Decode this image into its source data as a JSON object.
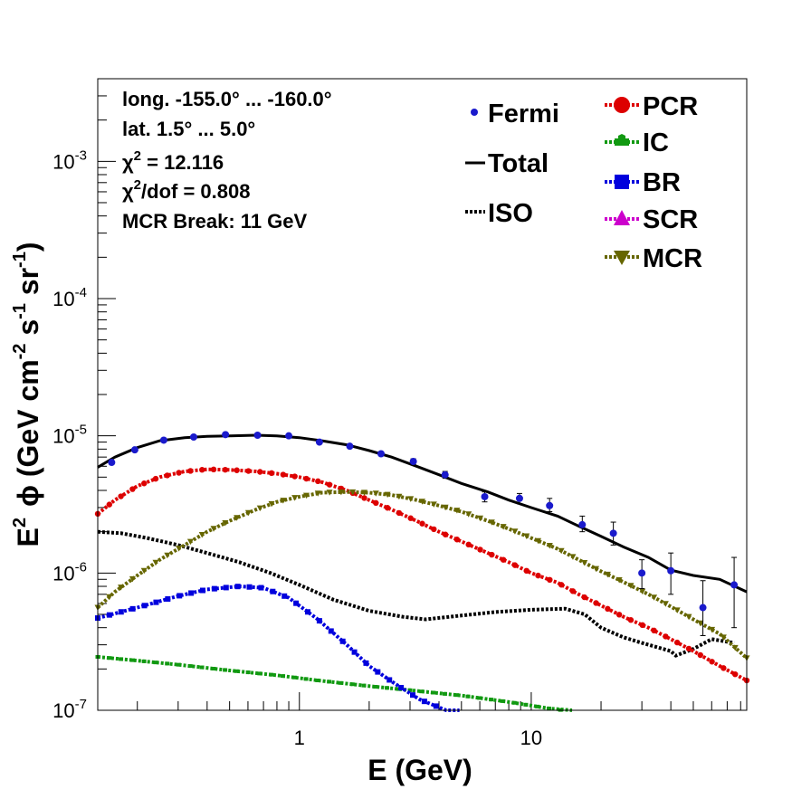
{
  "chart_data": {
    "type": "scatter",
    "title": "",
    "xlabel": "E (GeV)",
    "ylabel": "E^2 ϕ (GeV cm^-2 s^-1 sr^-1)",
    "ylabel_parts": {
      "E": "E",
      "sq": "2",
      "phi": "ϕ",
      "open": " (GeV cm",
      "cm_exp": "-2",
      "s": " s",
      "s_exp": "-1",
      "sr": " sr",
      "sr_exp": "-1",
      "close": ")"
    },
    "xscale": "log",
    "yscale": "log",
    "xlim": [
      0.135,
      85
    ],
    "ylim": [
      1e-07,
      0.004
    ],
    "x_tick_labels": [
      {
        "value": 1,
        "label": "1"
      },
      {
        "value": 10,
        "label": "10"
      }
    ],
    "y_tick_labels": [
      {
        "value": 1e-07,
        "base": "10",
        "exp": "-7"
      },
      {
        "value": 1e-06,
        "base": "10",
        "exp": "-6"
      },
      {
        "value": 1e-05,
        "base": "10",
        "exp": "-5"
      },
      {
        "value": 0.0001,
        "base": "10",
        "exp": "-4"
      },
      {
        "value": 0.001,
        "base": "10",
        "exp": "-3"
      }
    ],
    "info_box": {
      "longitude": "long. -155.0° ... -160.0°",
      "latitude": "lat. 1.5° ... 5.0°",
      "chi2_symbol": "χ",
      "chi2_sup": "2",
      "chi2_value": " = 12.116",
      "chi2dof_value": "/dof = 0.808",
      "mcr_break": "MCR Break: 11 GeV"
    },
    "legend": {
      "fermi": "Fermi",
      "total": "Total",
      "iso": "ISO",
      "pcr": "PCR",
      "ic": "IC",
      "br": "BR",
      "scr": "SCR",
      "mcr": "MCR"
    },
    "colors": {
      "fermi": "#1a1acc",
      "total": "#000000",
      "iso": "#000000",
      "pcr": "#dd0000",
      "ic": "#119911",
      "br": "#0000dd",
      "scr": "#cc00cc",
      "mcr": "#666600"
    },
    "fermi": {
      "x": [
        0.155,
        0.195,
        0.26,
        0.35,
        0.48,
        0.66,
        0.9,
        1.22,
        1.65,
        2.25,
        3.1,
        4.25,
        6.3,
        8.9,
        12.0,
        16.6,
        22.6,
        30.0,
        40.0,
        55.0,
        75.0
      ],
      "y": [
        6.4e-06,
        7.9e-06,
        9.3e-06,
        9.8e-06,
        1.02e-05,
        1.01e-05,
        1e-05,
        9e-06,
        8.4e-06,
        7.4e-06,
        6.5e-06,
        5.2e-06,
        3.6e-06,
        3.5e-06,
        3.1e-06,
        2.25e-06,
        1.95e-06,
        1e-06,
        1.04e-06,
        5.6e-07,
        8.2e-07
      ],
      "err_low": [
        6.2e-06,
        7.7e-06,
        9.1e-06,
        9.6e-06,
        1e-05,
        9.9e-06,
        9.8e-06,
        8.8e-06,
        8.2e-06,
        7.2e-06,
        6.2e-06,
        4.9e-06,
        3.3e-06,
        3.2e-06,
        2.8e-06,
        2e-06,
        1.6e-06,
        7.7e-07,
        7e-07,
        3.5e-07,
        4e-07
      ],
      "err_high": [
        6.6e-06,
        8.1e-06,
        9.5e-06,
        1e-05,
        1.04e-05,
        1.03e-05,
        1.02e-05,
        9.2e-06,
        8.6e-06,
        7.6e-06,
        6.8e-06,
        5.5e-06,
        3.9e-06,
        3.8e-06,
        3.5e-06,
        2.6e-06,
        2.35e-06,
        1.25e-06,
        1.4e-06,
        8.8e-07,
        1.3e-06
      ]
    },
    "series": [
      {
        "name": "Total",
        "style": "solid",
        "x": [
          0.135,
          0.16,
          0.2,
          0.25,
          0.32,
          0.4,
          0.5,
          0.65,
          0.8,
          1.0,
          1.25,
          1.6,
          2.0,
          2.5,
          3.2,
          4.0,
          5.0,
          6.5,
          8.0,
          10,
          13,
          16,
          20,
          25,
          32,
          40,
          50,
          65,
          85
        ],
        "y": [
          5.9e-06,
          7e-06,
          8.2e-06,
          9.2e-06,
          9.7e-06,
          9.9e-06,
          1e-05,
          1.01e-05,
          1e-05,
          9.7e-06,
          9.2e-06,
          8.6e-06,
          7.8e-06,
          7e-06,
          6e-06,
          5.2e-06,
          4.5e-06,
          3.9e-06,
          3.4e-06,
          3e-06,
          2.6e-06,
          2.2e-06,
          1.85e-06,
          1.55e-06,
          1.3e-06,
          1.05e-06,
          9.6e-07,
          9e-07,
          7.3e-07
        ]
      },
      {
        "name": "ISO",
        "style": "dotted",
        "x": [
          0.135,
          0.17,
          0.22,
          0.3,
          0.4,
          0.55,
          0.75,
          1.0,
          1.4,
          2.0,
          2.8,
          3.5,
          5.0,
          7.0,
          10,
          14,
          17,
          20,
          25,
          30,
          40,
          42,
          50,
          60,
          75
        ],
        "y": [
          2e-06,
          1.95e-06,
          1.8e-06,
          1.6e-06,
          1.4e-06,
          1.2e-06,
          1e-06,
          8.2e-07,
          6.4e-07,
          5.3e-07,
          4.8e-07,
          4.6e-07,
          4.9e-07,
          5.2e-07,
          5.4e-07,
          5.5e-07,
          5e-07,
          4e-07,
          3.4e-07,
          3.1e-07,
          2.7e-07,
          2.5e-07,
          2.8e-07,
          3.3e-07,
          3.1e-07
        ]
      },
      {
        "name": "PCR",
        "style": "dotted",
        "marker": "circle",
        "x": [
          0.135,
          0.16,
          0.2,
          0.25,
          0.32,
          0.4,
          0.5,
          0.65,
          0.8,
          1.0,
          1.25,
          1.6,
          2.0,
          2.5,
          3.2,
          4.0,
          5.0,
          6.5,
          8.0,
          10,
          13,
          16,
          20,
          25,
          32,
          40,
          50,
          65,
          85
        ],
        "y": [
          2.7e-06,
          3.4e-06,
          4.3e-06,
          5e-06,
          5.5e-06,
          5.7e-06,
          5.65e-06,
          5.5e-06,
          5.3e-06,
          5e-06,
          4.6e-06,
          4e-06,
          3.4e-06,
          2.9e-06,
          2.4e-06,
          2e-06,
          1.7e-06,
          1.4e-06,
          1.2e-06,
          1e-06,
          8.5e-07,
          7e-07,
          5.8e-07,
          4.8e-07,
          4e-07,
          3.3e-07,
          2.7e-07,
          2.1e-07,
          1.65e-07
        ]
      },
      {
        "name": "IC",
        "style": "dotted",
        "marker": "cross",
        "x": [
          0.135,
          0.2,
          0.3,
          0.5,
          0.8,
          1.2,
          2.0,
          3.0,
          5.0,
          8.0,
          12,
          15
        ],
        "y": [
          2.45e-07,
          2.3e-07,
          2.15e-07,
          1.95e-07,
          1.8e-07,
          1.65e-07,
          1.5e-07,
          1.4e-07,
          1.28e-07,
          1.15e-07,
          1.03e-07,
          9.8e-08
        ]
      },
      {
        "name": "BR",
        "style": "dotted",
        "marker": "square",
        "x": [
          0.135,
          0.2,
          0.3,
          0.4,
          0.55,
          0.7,
          0.9,
          1.2,
          1.6,
          2.0,
          2.6,
          3.3,
          4.3,
          4.9
        ],
        "y": [
          4.7e-07,
          5.6e-07,
          6.8e-07,
          7.6e-07,
          8e-07,
          7.8e-07,
          6.6e-07,
          4.6e-07,
          3e-07,
          2.1e-07,
          1.55e-07,
          1.2e-07,
          1e-07,
          9.4e-08
        ]
      },
      {
        "name": "MCR",
        "style": "dotted",
        "marker": "triangle-down",
        "x": [
          0.135,
          0.16,
          0.2,
          0.25,
          0.32,
          0.4,
          0.5,
          0.65,
          0.8,
          1.0,
          1.25,
          1.6,
          2.0,
          2.5,
          3.2,
          4.0,
          5.0,
          6.5,
          8.0,
          10,
          13,
          16,
          20,
          25,
          32,
          40,
          50,
          65,
          85
        ],
        "y": [
          5.6e-07,
          7.3e-07,
          9.6e-07,
          1.25e-06,
          1.6e-06,
          2e-06,
          2.4e-06,
          2.9e-06,
          3.3e-06,
          3.6e-06,
          3.85e-06,
          3.9e-06,
          3.85e-06,
          3.7e-06,
          3.4e-06,
          3.1e-06,
          2.8e-06,
          2.4e-06,
          2.1e-06,
          1.8e-06,
          1.5e-06,
          1.25e-06,
          1.03e-06,
          8.6e-07,
          7e-07,
          5.7e-07,
          4.6e-07,
          3.6e-07,
          2.4e-07
        ]
      }
    ]
  }
}
